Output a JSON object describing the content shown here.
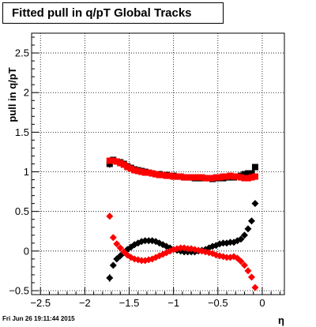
{
  "header": {
    "title": "Fitted pull in q/pT  Global Tracks"
  },
  "footer": {
    "timestamp": "Fri Jun 26 19:11:44 2015"
  },
  "colors": {
    "series_black": "#000000",
    "series_red": "#ff0000",
    "grid": "#000000"
  },
  "chart_data": {
    "type": "scatter",
    "title": "Fitted pull in q/pT  Global Tracks",
    "xlabel": "η",
    "ylabel": "pull in q/pT",
    "xlim": [
      -2.6,
      0.25
    ],
    "ylim": [
      -0.55,
      2.75
    ],
    "xticks": [
      -2.5,
      -2,
      -1.5,
      -1,
      -0.5,
      0
    ],
    "xtick_labels": [
      "−2.5",
      "−2",
      "−1.5",
      "−1",
      "−0.5",
      "0"
    ],
    "yticks": [
      -0.5,
      0,
      0.5,
      1,
      1.5,
      2,
      2.5
    ],
    "ytick_labels": [
      "−0.5",
      "0",
      "0.5",
      "1",
      "1.5",
      "2",
      "2.5"
    ],
    "grid": true,
    "series": [
      {
        "group": "black",
        "marker": "square",
        "x": [
          -1.72,
          -1.68,
          -1.64,
          -1.6,
          -1.56,
          -1.52,
          -1.48,
          -1.44,
          -1.4,
          -1.36,
          -1.32,
          -1.28,
          -1.24,
          -1.2,
          -1.16,
          -1.12,
          -1.08,
          -1.04,
          -1.0,
          -0.96,
          -0.92,
          -0.88,
          -0.84,
          -0.8,
          -0.76,
          -0.72,
          -0.68,
          -0.64,
          -0.6,
          -0.56,
          -0.52,
          -0.48,
          -0.44,
          -0.4,
          -0.36,
          -0.32,
          -0.28,
          -0.24,
          -0.2,
          -0.16,
          -0.12,
          -0.08
        ],
        "y": [
          1.1,
          1.15,
          1.13,
          1.12,
          1.1,
          1.07,
          1.05,
          1.03,
          1.02,
          1.01,
          1.0,
          0.99,
          0.98,
          0.97,
          0.97,
          0.96,
          0.96,
          0.95,
          0.95,
          0.94,
          0.94,
          0.93,
          0.93,
          0.93,
          0.92,
          0.92,
          0.92,
          0.92,
          0.92,
          0.91,
          0.92,
          0.92,
          0.92,
          0.93,
          0.93,
          0.93,
          0.94,
          0.95,
          0.97,
          0.98,
          0.98,
          1.06
        ],
        "yerr": [
          0.05,
          0.02,
          0.02,
          0.02,
          0.02,
          0.01,
          0.01,
          0.01,
          0.01,
          0.01,
          0.01,
          0.01,
          0.01,
          0.01,
          0.01,
          0.01,
          0.01,
          0.01,
          0.01,
          0.01,
          0.01,
          0.01,
          0.01,
          0.01,
          0.01,
          0.01,
          0.01,
          0.01,
          0.01,
          0.01,
          0.01,
          0.01,
          0.01,
          0.01,
          0.01,
          0.01,
          0.01,
          0.01,
          0.01,
          0.02,
          0.02,
          0.04
        ]
      },
      {
        "group": "red",
        "marker": "square",
        "x": [
          -1.72,
          -1.68,
          -1.64,
          -1.6,
          -1.56,
          -1.52,
          -1.48,
          -1.44,
          -1.4,
          -1.36,
          -1.32,
          -1.28,
          -1.24,
          -1.2,
          -1.16,
          -1.12,
          -1.08,
          -1.04,
          -1.0,
          -0.96,
          -0.92,
          -0.88,
          -0.84,
          -0.8,
          -0.76,
          -0.72,
          -0.68,
          -0.64,
          -0.6,
          -0.56,
          -0.52,
          -0.48,
          -0.44,
          -0.4,
          -0.36,
          -0.32,
          -0.28,
          -0.24,
          -0.2,
          -0.16,
          -0.12,
          -0.08
        ],
        "y": [
          1.14,
          1.14,
          1.13,
          1.11,
          1.09,
          1.06,
          1.04,
          1.02,
          1.01,
          1.0,
          0.99,
          0.99,
          0.98,
          0.97,
          0.96,
          0.96,
          0.95,
          0.95,
          0.94,
          0.94,
          0.94,
          0.93,
          0.93,
          0.93,
          0.93,
          0.93,
          0.93,
          0.92,
          0.92,
          0.92,
          0.93,
          0.93,
          0.94,
          0.94,
          0.95,
          0.94,
          0.94,
          0.93,
          0.92,
          0.92,
          0.93,
          0.94
        ],
        "yerr": [
          0.03,
          0.02,
          0.02,
          0.02,
          0.02,
          0.01,
          0.01,
          0.01,
          0.01,
          0.01,
          0.01,
          0.01,
          0.01,
          0.01,
          0.01,
          0.01,
          0.01,
          0.01,
          0.01,
          0.01,
          0.01,
          0.01,
          0.01,
          0.01,
          0.01,
          0.01,
          0.01,
          0.01,
          0.01,
          0.01,
          0.01,
          0.01,
          0.01,
          0.01,
          0.01,
          0.01,
          0.01,
          0.01,
          0.01,
          0.01,
          0.02,
          0.02
        ]
      },
      {
        "group": "black",
        "marker": "diamond",
        "x": [
          -1.72,
          -1.68,
          -1.64,
          -1.6,
          -1.56,
          -1.52,
          -1.48,
          -1.44,
          -1.4,
          -1.36,
          -1.32,
          -1.28,
          -1.24,
          -1.2,
          -1.16,
          -1.12,
          -1.08,
          -1.04,
          -1.0,
          -0.96,
          -0.92,
          -0.88,
          -0.84,
          -0.8,
          -0.76,
          -0.72,
          -0.68,
          -0.64,
          -0.6,
          -0.56,
          -0.52,
          -0.48,
          -0.44,
          -0.4,
          -0.36,
          -0.32,
          -0.28,
          -0.24,
          -0.2,
          -0.16,
          -0.12,
          -0.08
        ],
        "y": [
          -0.34,
          -0.18,
          -0.1,
          -0.06,
          -0.02,
          0.02,
          0.05,
          0.08,
          0.1,
          0.12,
          0.13,
          0.13,
          0.13,
          0.12,
          0.1,
          0.08,
          0.06,
          0.04,
          0.02,
          0.01,
          0.0,
          -0.01,
          -0.01,
          -0.01,
          -0.01,
          0.0,
          0.01,
          0.02,
          0.04,
          0.06,
          0.07,
          0.09,
          0.1,
          0.1,
          0.11,
          0.11,
          0.13,
          0.15,
          0.2,
          0.28,
          0.38,
          0.6
        ],
        "yerr": [
          0.05,
          0.03,
          0.02,
          0.02,
          0.02,
          0.01,
          0.01,
          0.01,
          0.01,
          0.01,
          0.01,
          0.01,
          0.01,
          0.01,
          0.01,
          0.01,
          0.01,
          0.01,
          0.01,
          0.01,
          0.01,
          0.01,
          0.01,
          0.01,
          0.01,
          0.01,
          0.01,
          0.01,
          0.01,
          0.01,
          0.01,
          0.01,
          0.01,
          0.01,
          0.01,
          0.01,
          0.01,
          0.01,
          0.01,
          0.02,
          0.02,
          0.03
        ]
      },
      {
        "group": "red",
        "marker": "diamond",
        "x": [
          -1.72,
          -1.68,
          -1.64,
          -1.6,
          -1.56,
          -1.52,
          -1.48,
          -1.44,
          -1.4,
          -1.36,
          -1.32,
          -1.28,
          -1.24,
          -1.2,
          -1.16,
          -1.12,
          -1.08,
          -1.04,
          -1.0,
          -0.96,
          -0.92,
          -0.88,
          -0.84,
          -0.8,
          -0.76,
          -0.72,
          -0.68,
          -0.64,
          -0.6,
          -0.56,
          -0.52,
          -0.48,
          -0.44,
          -0.4,
          -0.36,
          -0.32,
          -0.28,
          -0.24,
          -0.2,
          -0.16,
          -0.12,
          -0.08
        ],
        "y": [
          0.44,
          0.17,
          0.09,
          0.04,
          -0.01,
          -0.05,
          -0.08,
          -0.1,
          -0.11,
          -0.12,
          -0.12,
          -0.11,
          -0.1,
          -0.08,
          -0.06,
          -0.04,
          -0.02,
          0.0,
          0.02,
          0.03,
          0.04,
          0.04,
          0.03,
          0.03,
          0.02,
          0.01,
          0.0,
          -0.01,
          -0.02,
          -0.03,
          -0.05,
          -0.06,
          -0.07,
          -0.08,
          -0.08,
          -0.07,
          -0.09,
          -0.13,
          -0.18,
          -0.25,
          -0.33,
          -0.46
        ],
        "yerr": [
          0.04,
          0.02,
          0.02,
          0.02,
          0.01,
          0.01,
          0.01,
          0.01,
          0.01,
          0.01,
          0.01,
          0.01,
          0.01,
          0.01,
          0.01,
          0.01,
          0.01,
          0.01,
          0.01,
          0.01,
          0.01,
          0.01,
          0.01,
          0.01,
          0.01,
          0.01,
          0.01,
          0.01,
          0.01,
          0.01,
          0.01,
          0.01,
          0.01,
          0.01,
          0.01,
          0.01,
          0.01,
          0.01,
          0.01,
          0.01,
          0.02,
          0.02
        ]
      }
    ]
  }
}
